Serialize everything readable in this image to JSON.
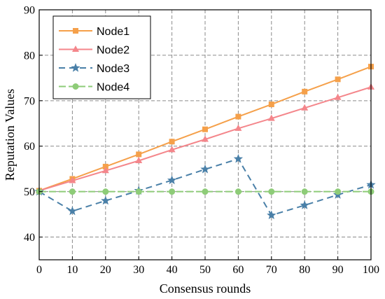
{
  "chart_data": {
    "type": "line",
    "title": "",
    "xlabel": "Consensus rounds",
    "ylabel": "Reputation Values",
    "xlim": [
      0,
      100
    ],
    "ylim": [
      35,
      90
    ],
    "x_ticks": [
      "0",
      "10",
      "20",
      "30",
      "40",
      "50",
      "60",
      "70",
      "80",
      "90",
      "100"
    ],
    "y_ticks": [
      "40",
      "50",
      "60",
      "70",
      "80",
      "90"
    ],
    "grid": true,
    "legend_position": "top-left",
    "x": [
      0,
      10,
      20,
      30,
      40,
      50,
      60,
      70,
      80,
      90,
      100
    ],
    "series": [
      {
        "name": "Node1",
        "color": "#F5A04A",
        "marker": "square",
        "line_style": "solid",
        "values": [
          50.2,
          52.8,
          55.5,
          58.2,
          61.0,
          63.7,
          66.5,
          69.2,
          72.0,
          74.7,
          77.5
        ]
      },
      {
        "name": "Node2",
        "color": "#F4868B",
        "marker": "triangle",
        "line_style": "solid",
        "values": [
          50.2,
          52.4,
          54.6,
          56.8,
          59.2,
          61.5,
          63.9,
          66.1,
          68.4,
          70.7,
          73.0
        ]
      },
      {
        "name": "Node3",
        "color": "#4A80A8",
        "marker": "star",
        "line_style": "dashed",
        "values": [
          50.0,
          45.7,
          48.0,
          50.2,
          52.5,
          54.9,
          57.2,
          44.8,
          47.0,
          49.3,
          51.5
        ]
      },
      {
        "name": "Node4",
        "color": "#8ECC78",
        "marker": "circle",
        "line_style": "dashed",
        "values": [
          50.0,
          50.0,
          50.0,
          50.0,
          50.0,
          50.0,
          50.0,
          50.0,
          50.0,
          50.0,
          50.0
        ]
      }
    ]
  }
}
